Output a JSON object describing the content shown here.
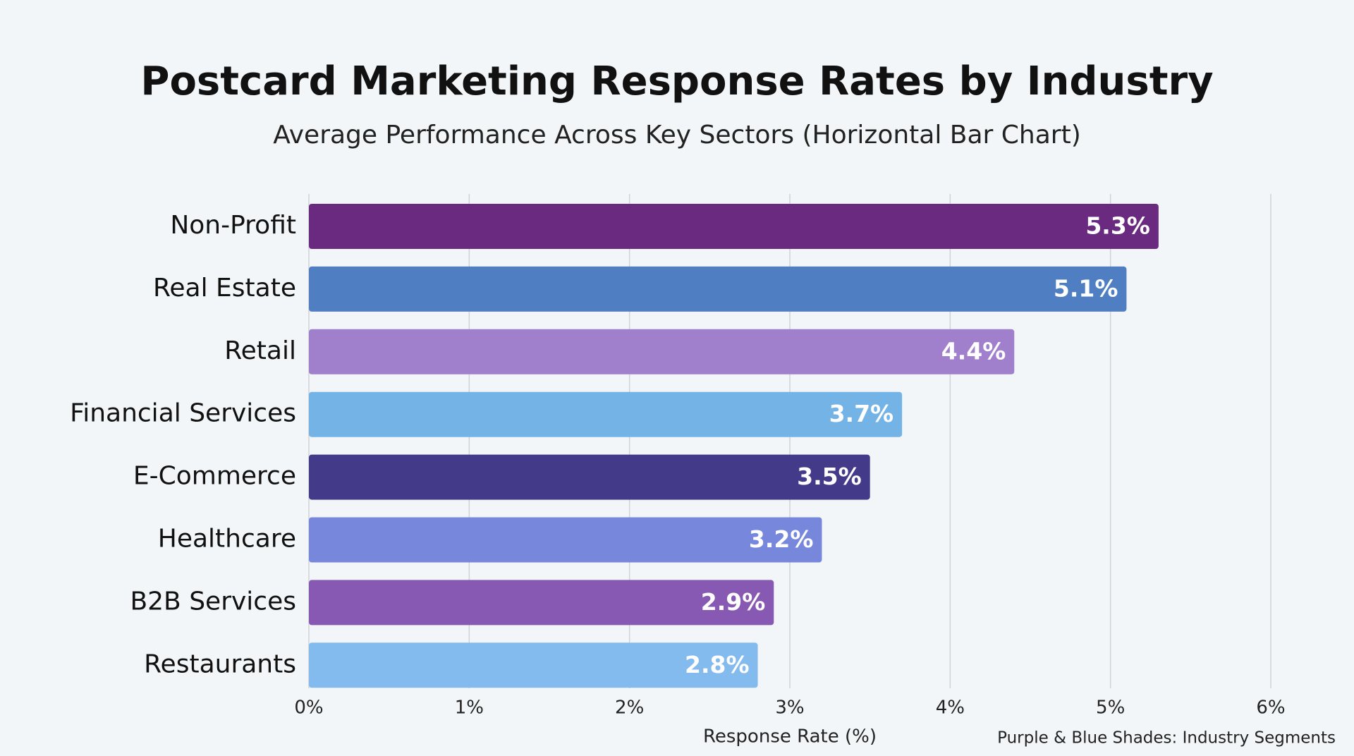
{
  "chart_data": {
    "type": "bar",
    "orientation": "horizontal",
    "title": "Postcard Marketing Response Rates by Industry",
    "subtitle": "Average Performance Across Key Sectors (Horizontal Bar Chart)",
    "x_label": "Response Rate (%)",
    "annotation": "Purple & Blue Shades: Industry Segments",
    "categories": [
      "Non-Profit",
      "Real Estate",
      "Retail",
      "Financial Services",
      "E-Commerce",
      "Healthcare",
      "B2B Services",
      "Restaurants"
    ],
    "values": [
      5.3,
      5.1,
      4.4,
      3.7,
      3.5,
      3.2,
      2.9,
      2.8
    ],
    "value_labels": [
      "5.3%",
      "5.1%",
      "4.4%",
      "3.7%",
      "3.5%",
      "3.2%",
      "2.9%",
      "2.8%"
    ],
    "colors": [
      "#6a2a80",
      "#4f7fc2",
      "#a07fcd",
      "#74b3e6",
      "#443a8a",
      "#7788dc",
      "#8759b3",
      "#84bbee"
    ],
    "xlim": [
      0,
      6
    ],
    "xticks": [
      {
        "value": 0,
        "label": "0%"
      },
      {
        "value": 1,
        "label": "1%"
      },
      {
        "value": 2,
        "label": "2%"
      },
      {
        "value": 3,
        "label": "3%"
      },
      {
        "value": 4,
        "label": "4%"
      },
      {
        "value": 5,
        "label": "5%"
      },
      {
        "value": 6,
        "label": "6%"
      }
    ],
    "grid": true
  }
}
